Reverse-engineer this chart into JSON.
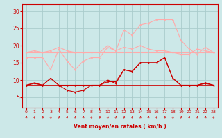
{
  "x": [
    0,
    1,
    2,
    3,
    4,
    5,
    6,
    7,
    8,
    9,
    10,
    11,
    12,
    13,
    14,
    15,
    16,
    17,
    18,
    19,
    20,
    21,
    22,
    23
  ],
  "bg_color": "#cce8e8",
  "grid_color": "#aacccc",
  "xlabel": "Vent moyen/en rafales ( km/h )",
  "xlabel_color": "#cc0000",
  "tick_color": "#cc0000",
  "ylim": [
    2,
    32
  ],
  "yticks": [
    5,
    10,
    15,
    20,
    25,
    30
  ],
  "line_series": [
    {
      "y": [
        8.5,
        8.5,
        8.5,
        8.5,
        8.5,
        8.5,
        8.5,
        8.5,
        8.5,
        8.5,
        8.5,
        8.5,
        8.5,
        8.5,
        8.5,
        8.5,
        8.5,
        8.5,
        8.5,
        8.5,
        8.5,
        8.5,
        8.5,
        8.5
      ],
      "color": "#cc0000",
      "lw": 1.2,
      "marker": null,
      "zorder": 2
    },
    {
      "y": [
        8.5,
        9.0,
        8.5,
        10.5,
        8.5,
        8.5,
        8.5,
        8.5,
        8.5,
        8.5,
        10.0,
        9.0,
        13.0,
        12.5,
        15.0,
        15.0,
        15.0,
        16.5,
        10.5,
        8.5,
        8.5,
        8.5,
        9.0,
        8.5
      ],
      "color": "#cc0000",
      "lw": 0.8,
      "marker": "D",
      "ms": 1.5,
      "zorder": 3
    },
    {
      "y": [
        8.5,
        9.2,
        8.5,
        10.5,
        8.5,
        7.0,
        6.5,
        7.0,
        8.5,
        8.5,
        9.5,
        9.5,
        13.0,
        12.5,
        15.0,
        15.0,
        15.0,
        16.5,
        10.5,
        8.5,
        8.5,
        8.5,
        9.2,
        8.5
      ],
      "color": "#cc0000",
      "lw": 0.8,
      "marker": "D",
      "ms": 1.5,
      "zorder": 3
    },
    {
      "y": [
        16.5,
        16.5,
        16.5,
        13.0,
        19.0,
        15.5,
        13.0,
        15.5,
        16.5,
        16.5,
        19.5,
        18.5,
        19.5,
        19.0,
        20.0,
        19.0,
        18.5,
        18.5,
        18.0,
        17.5,
        17.5,
        19.0,
        18.5,
        18.0
      ],
      "color": "#ffaaaa",
      "lw": 0.8,
      "marker": "D",
      "ms": 1.5,
      "zorder": 2
    },
    {
      "y": [
        18.0,
        18.0,
        18.0,
        18.0,
        18.0,
        18.0,
        18.0,
        18.0,
        18.0,
        18.0,
        18.0,
        18.0,
        18.0,
        18.0,
        18.0,
        18.0,
        18.0,
        18.0,
        18.0,
        18.0,
        18.0,
        18.0,
        18.0,
        18.0
      ],
      "color": "#ffaaaa",
      "lw": 1.5,
      "marker": null,
      "zorder": 1
    },
    {
      "y": [
        18.0,
        18.5,
        18.0,
        18.5,
        19.5,
        18.5,
        18.0,
        18.0,
        18.0,
        18.0,
        20.0,
        18.5,
        24.5,
        23.0,
        26.0,
        26.5,
        27.5,
        27.5,
        27.5,
        21.5,
        19.0,
        17.5,
        19.5,
        18.0
      ],
      "color": "#ffaaaa",
      "lw": 0.8,
      "marker": "D",
      "ms": 1.5,
      "zorder": 3
    }
  ]
}
